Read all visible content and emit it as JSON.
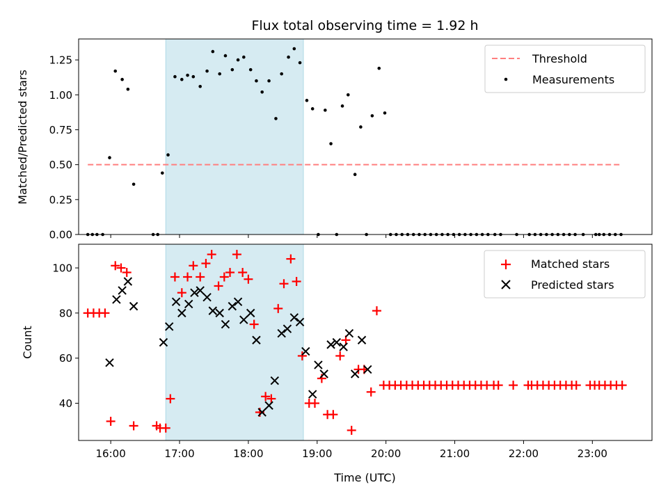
{
  "title": "Flux total observing time = 1.92 h",
  "colors": {
    "threshold": "#ff7f7f",
    "measurements": "#000000",
    "matched": "#ff0000",
    "predicted": "#000000",
    "highlight": "#add8e6"
  },
  "chart_data": [
    {
      "type": "scatter",
      "title": "Flux total observing time = 1.92 h",
      "ylabel": "Matched/Predicted stars",
      "xlabel": "",
      "xlim": [
        "15:32",
        "23:52"
      ],
      "ylim": [
        0,
        1.4
      ],
      "yticks": [
        "0.00",
        "0.25",
        "0.50",
        "0.75",
        "1.00",
        "1.25"
      ],
      "legend_position": "top-right",
      "highlight_span": [
        "16:48",
        "18:48"
      ],
      "threshold": {
        "name": "Threshold",
        "y": 0.5,
        "x_range": [
          "15:40",
          "23:25"
        ]
      },
      "series": [
        {
          "name": "Measurements",
          "points": [
            [
              "15:40",
              0
            ],
            [
              "15:44",
              0
            ],
            [
              "15:48",
              0
            ],
            [
              "15:53",
              0
            ],
            [
              "15:59",
              0.55
            ],
            [
              "16:04",
              1.17
            ],
            [
              "16:10",
              1.11
            ],
            [
              "16:15",
              1.04
            ],
            [
              "16:20",
              0.36
            ],
            [
              "16:37",
              0
            ],
            [
              "16:41",
              0
            ],
            [
              "16:45",
              0.44
            ],
            [
              "16:50",
              0.57
            ],
            [
              "16:56",
              1.13
            ],
            [
              "17:02",
              1.11
            ],
            [
              "17:07",
              1.14
            ],
            [
              "17:12",
              1.13
            ],
            [
              "17:18",
              1.06
            ],
            [
              "17:24",
              1.17
            ],
            [
              "17:29",
              1.31
            ],
            [
              "17:35",
              1.15
            ],
            [
              "17:40",
              1.28
            ],
            [
              "17:46",
              1.18
            ],
            [
              "17:51",
              1.25
            ],
            [
              "17:56",
              1.27
            ],
            [
              "18:02",
              1.18
            ],
            [
              "18:07",
              1.1
            ],
            [
              "18:12",
              1.02
            ],
            [
              "18:18",
              1.1
            ],
            [
              "18:24",
              0.83
            ],
            [
              "18:29",
              1.15
            ],
            [
              "18:35",
              1.27
            ],
            [
              "18:40",
              1.33
            ],
            [
              "18:45",
              1.23
            ],
            [
              "18:51",
              0.96
            ],
            [
              "18:56",
              0.9
            ],
            [
              "19:01",
              0
            ],
            [
              "19:07",
              0.89
            ],
            [
              "19:12",
              0.65
            ],
            [
              "19:17",
              0
            ],
            [
              "19:22",
              0.92
            ],
            [
              "19:27",
              1.0
            ],
            [
              "19:33",
              0.43
            ],
            [
              "19:38",
              0.77
            ],
            [
              "19:43",
              0
            ],
            [
              "19:48",
              0.85
            ],
            [
              "19:54",
              1.19
            ],
            [
              "19:59",
              0.87
            ],
            [
              "20:04",
              0
            ],
            [
              "20:09",
              0
            ],
            [
              "20:14",
              0
            ],
            [
              "20:19",
              0
            ],
            [
              "20:24",
              0
            ],
            [
              "20:29",
              0
            ],
            [
              "20:34",
              0
            ],
            [
              "20:39",
              0
            ],
            [
              "20:44",
              0
            ],
            [
              "20:49",
              0
            ],
            [
              "20:54",
              0
            ],
            [
              "20:59",
              0
            ],
            [
              "21:04",
              0
            ],
            [
              "21:09",
              0
            ],
            [
              "21:14",
              0
            ],
            [
              "21:19",
              0
            ],
            [
              "21:24",
              0
            ],
            [
              "21:29",
              0
            ],
            [
              "21:35",
              0
            ],
            [
              "21:40",
              0
            ],
            [
              "21:54",
              0
            ],
            [
              "22:05",
              0
            ],
            [
              "22:10",
              0
            ],
            [
              "22:15",
              0
            ],
            [
              "22:20",
              0
            ],
            [
              "22:25",
              0
            ],
            [
              "22:30",
              0
            ],
            [
              "22:35",
              0
            ],
            [
              "22:40",
              0
            ],
            [
              "22:45",
              0
            ],
            [
              "22:52",
              0
            ],
            [
              "23:03",
              0
            ],
            [
              "23:06",
              0
            ],
            [
              "23:10",
              0
            ],
            [
              "23:15",
              0
            ],
            [
              "23:20",
              0
            ],
            [
              "23:25",
              0
            ]
          ]
        }
      ]
    },
    {
      "type": "scatter",
      "xlabel": "Time (UTC)",
      "ylabel": "Count",
      "xlim": [
        "15:32",
        "23:52"
      ],
      "ylim": [
        23.5,
        110.5
      ],
      "yticks": [
        "40",
        "60",
        "80",
        "100"
      ],
      "xticks": [
        "16:00",
        "17:00",
        "18:00",
        "19:00",
        "20:00",
        "21:00",
        "22:00",
        "23:00"
      ],
      "legend_position": "top-right",
      "highlight_span": [
        "16:48",
        "18:48"
      ],
      "series": [
        {
          "name": "Matched stars",
          "points": [
            [
              "15:40",
              80
            ],
            [
              "15:45",
              80
            ],
            [
              "15:50",
              80
            ],
            [
              "15:55",
              80
            ],
            [
              "16:00",
              32
            ],
            [
              "16:04",
              101
            ],
            [
              "16:09",
              100
            ],
            [
              "16:14",
              98
            ],
            [
              "16:20",
              30
            ],
            [
              "16:40",
              30
            ],
            [
              "16:43",
              29
            ],
            [
              "16:48",
              29
            ],
            [
              "16:52",
              42
            ],
            [
              "16:56",
              96
            ],
            [
              "17:02",
              89
            ],
            [
              "17:07",
              96
            ],
            [
              "17:12",
              101
            ],
            [
              "17:18",
              96
            ],
            [
              "17:23",
              102
            ],
            [
              "17:28",
              106
            ],
            [
              "17:34",
              92
            ],
            [
              "17:39",
              96
            ],
            [
              "17:44",
              98
            ],
            [
              "17:50",
              106
            ],
            [
              "17:55",
              98
            ],
            [
              "18:00",
              95
            ],
            [
              "18:05",
              75
            ],
            [
              "18:10",
              36
            ],
            [
              "18:15",
              43
            ],
            [
              "18:20",
              42
            ],
            [
              "18:26",
              82
            ],
            [
              "18:31",
              93
            ],
            [
              "18:37",
              104
            ],
            [
              "18:42",
              94
            ],
            [
              "18:47",
              61
            ],
            [
              "18:53",
              40
            ],
            [
              "18:58",
              40
            ],
            [
              "19:04",
              51
            ],
            [
              "19:09",
              35
            ],
            [
              "19:14",
              35
            ],
            [
              "19:20",
              61
            ],
            [
              "19:25",
              68
            ],
            [
              "19:30",
              28
            ],
            [
              "19:36",
              55
            ],
            [
              "19:41",
              55
            ],
            [
              "19:47",
              45
            ],
            [
              "19:52",
              81
            ],
            [
              "19:58",
              48
            ],
            [
              "20:03",
              48
            ],
            [
              "20:08",
              48
            ],
            [
              "20:13",
              48
            ],
            [
              "20:18",
              48
            ],
            [
              "20:23",
              48
            ],
            [
              "20:28",
              48
            ],
            [
              "20:33",
              48
            ],
            [
              "20:38",
              48
            ],
            [
              "20:43",
              48
            ],
            [
              "20:48",
              48
            ],
            [
              "20:53",
              48
            ],
            [
              "20:58",
              48
            ],
            [
              "21:03",
              48
            ],
            [
              "21:08",
              48
            ],
            [
              "21:13",
              48
            ],
            [
              "21:18",
              48
            ],
            [
              "21:23",
              48
            ],
            [
              "21:28",
              48
            ],
            [
              "21:34",
              48
            ],
            [
              "21:38",
              48
            ],
            [
              "21:51",
              48
            ],
            [
              "22:04",
              48
            ],
            [
              "22:07",
              48
            ],
            [
              "22:12",
              48
            ],
            [
              "22:17",
              48
            ],
            [
              "22:22",
              48
            ],
            [
              "22:27",
              48
            ],
            [
              "22:32",
              48
            ],
            [
              "22:37",
              48
            ],
            [
              "22:42",
              48
            ],
            [
              "22:46",
              48
            ],
            [
              "22:58",
              48
            ],
            [
              "23:02",
              48
            ],
            [
              "23:06",
              48
            ],
            [
              "23:11",
              48
            ],
            [
              "23:16",
              48
            ],
            [
              "23:21",
              48
            ],
            [
              "23:26",
              48
            ]
          ]
        },
        {
          "name": "Predicted stars",
          "points": [
            [
              "15:59",
              58
            ],
            [
              "16:05",
              86
            ],
            [
              "16:10",
              90
            ],
            [
              "16:15",
              94
            ],
            [
              "16:20",
              83
            ],
            [
              "16:46",
              67
            ],
            [
              "16:51",
              74
            ],
            [
              "16:57",
              85
            ],
            [
              "17:02",
              80
            ],
            [
              "17:08",
              84
            ],
            [
              "17:13",
              89
            ],
            [
              "17:18",
              90
            ],
            [
              "17:24",
              87
            ],
            [
              "17:29",
              81
            ],
            [
              "17:35",
              80
            ],
            [
              "17:40",
              75
            ],
            [
              "17:46",
              83
            ],
            [
              "17:51",
              85
            ],
            [
              "17:56",
              77
            ],
            [
              "18:02",
              80
            ],
            [
              "18:07",
              68
            ],
            [
              "18:12",
              36
            ],
            [
              "18:18",
              39
            ],
            [
              "18:23",
              50
            ],
            [
              "18:29",
              71
            ],
            [
              "18:34",
              73
            ],
            [
              "18:40",
              78
            ],
            [
              "18:45",
              76
            ],
            [
              "18:50",
              63
            ],
            [
              "18:56",
              44
            ],
            [
              "19:01",
              57
            ],
            [
              "19:06",
              53
            ],
            [
              "19:12",
              66
            ],
            [
              "19:17",
              67
            ],
            [
              "19:23",
              65
            ],
            [
              "19:28",
              71
            ],
            [
              "19:33",
              53
            ],
            [
              "19:39",
              68
            ],
            [
              "19:44",
              55
            ]
          ]
        }
      ]
    }
  ]
}
